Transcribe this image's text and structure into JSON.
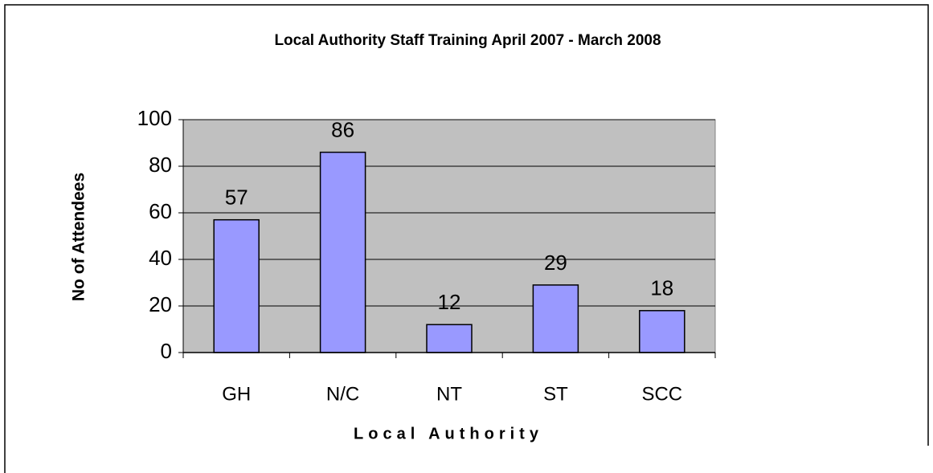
{
  "chart_data": {
    "type": "bar",
    "title": "Local Authority Staff Training April 2007 - March 2008",
    "x_label": "Local Authority",
    "y_label": "No of Attendees",
    "categories": [
      "GH",
      "N/C",
      "NT",
      "ST",
      "SCC"
    ],
    "values": [
      57,
      86,
      12,
      29,
      18
    ],
    "color": "#9999ff",
    "ylim": [
      0,
      100
    ],
    "yticks": [
      0,
      20,
      40,
      60,
      80,
      100
    ],
    "grid": true
  }
}
